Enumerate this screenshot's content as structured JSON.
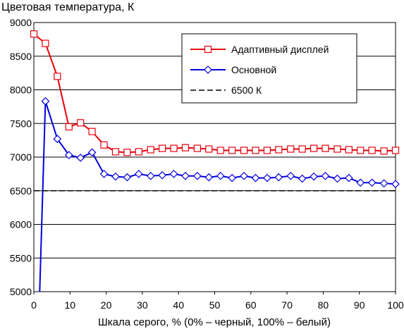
{
  "chart_data": {
    "type": "line",
    "title": "Цветовая температура, К",
    "xlabel": "Шкала серого, % (0% – черный, 100% – белый)",
    "ylabel": "",
    "xlim": [
      0,
      100
    ],
    "ylim": [
      5000,
      9000
    ],
    "xticks": [
      0,
      10,
      20,
      30,
      40,
      50,
      60,
      70,
      80,
      90,
      100
    ],
    "yticks": [
      5000,
      5500,
      6000,
      6500,
      7000,
      7500,
      8000,
      8500,
      9000
    ],
    "grid": "horizontal",
    "legend_position": "top-right",
    "series": [
      {
        "name": "Адаптивный дисплей",
        "color": "#e8000b",
        "marker": "square",
        "x": [
          0,
          3.2,
          6.5,
          9.7,
          12.9,
          16.1,
          19.4,
          22.6,
          25.8,
          29.0,
          32.3,
          35.5,
          38.7,
          41.9,
          45.2,
          48.4,
          51.6,
          54.8,
          58.1,
          61.3,
          64.5,
          67.7,
          71.0,
          74.2,
          77.4,
          80.6,
          83.9,
          87.1,
          90.3,
          93.5,
          96.8,
          100
        ],
        "y": [
          8830,
          8690,
          8200,
          7450,
          7510,
          7380,
          7180,
          7080,
          7070,
          7080,
          7110,
          7130,
          7130,
          7140,
          7130,
          7120,
          7100,
          7100,
          7100,
          7100,
          7100,
          7110,
          7120,
          7120,
          7130,
          7130,
          7120,
          7110,
          7100,
          7100,
          7090,
          7100
        ]
      },
      {
        "name": "Основной",
        "color": "#0000e0",
        "marker": "diamond",
        "x": [
          1.6,
          3.2,
          6.5,
          9.7,
          12.9,
          16.1,
          19.4,
          22.6,
          25.8,
          29.0,
          32.3,
          35.5,
          38.7,
          41.9,
          45.2,
          48.4,
          51.6,
          54.8,
          58.1,
          61.3,
          64.5,
          67.7,
          71.0,
          74.2,
          77.4,
          80.6,
          83.9,
          87.1,
          90.3,
          93.5,
          96.8,
          100
        ],
        "y": [
          4970,
          7830,
          7270,
          7030,
          6990,
          7070,
          6750,
          6710,
          6700,
          6750,
          6720,
          6730,
          6750,
          6720,
          6720,
          6700,
          6720,
          6690,
          6720,
          6690,
          6690,
          6700,
          6720,
          6680,
          6710,
          6720,
          6680,
          6690,
          6620,
          6620,
          6610,
          6600
        ],
        "marker_start_index": 1
      },
      {
        "name": "6500 К",
        "color": "#000000",
        "style": "dashed",
        "x": [
          0,
          100
        ],
        "y": [
          6500,
          6500
        ]
      }
    ]
  }
}
